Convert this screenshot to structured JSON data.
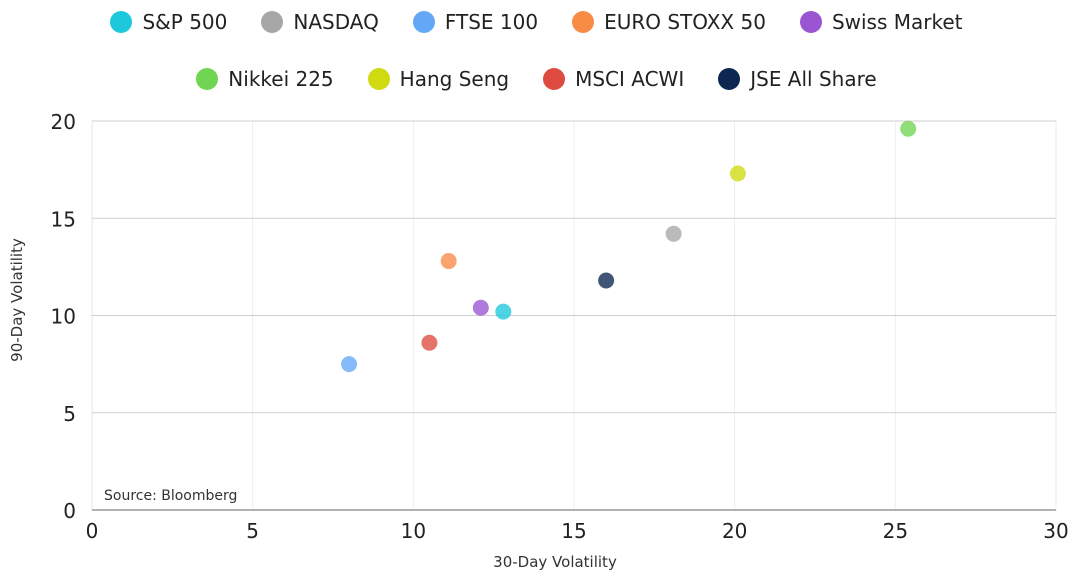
{
  "chart_data": {
    "type": "scatter",
    "xlabel": "30-Day Volatility",
    "ylabel": "90-Day Volatility",
    "xlim": [
      0,
      30
    ],
    "ylim": [
      0,
      20
    ],
    "xticks": [
      0,
      5,
      10,
      15,
      20,
      25,
      30
    ],
    "yticks": [
      0,
      5,
      10,
      15,
      20
    ],
    "grid": true,
    "legend_position": "top",
    "annotation": "Source: Bloomberg",
    "series": [
      {
        "name": "S&P 500",
        "color": "#1ec8dc",
        "x": 12.8,
        "y": 10.2
      },
      {
        "name": "NASDAQ",
        "color": "#a6a6a6",
        "x": 18.1,
        "y": 14.2
      },
      {
        "name": "FTSE 100",
        "color": "#63a8f7",
        "x": 8.0,
        "y": 7.5
      },
      {
        "name": "EURO STOXX 50",
        "color": "#f98c45",
        "x": 11.1,
        "y": 12.8
      },
      {
        "name": "Swiss Market",
        "color": "#9a55d2",
        "x": 12.1,
        "y": 10.4
      },
      {
        "name": "Nikkei 225",
        "color": "#6fd553",
        "x": 25.4,
        "y": 19.6
      },
      {
        "name": "Hang Seng",
        "color": "#cfdb10",
        "x": 20.1,
        "y": 17.3
      },
      {
        "name": "MSCI ACWI",
        "color": "#de4b40",
        "x": 10.5,
        "y": 8.6
      },
      {
        "name": "JSE All Share",
        "color": "#0c2750",
        "x": 16.0,
        "y": 11.8
      }
    ]
  }
}
